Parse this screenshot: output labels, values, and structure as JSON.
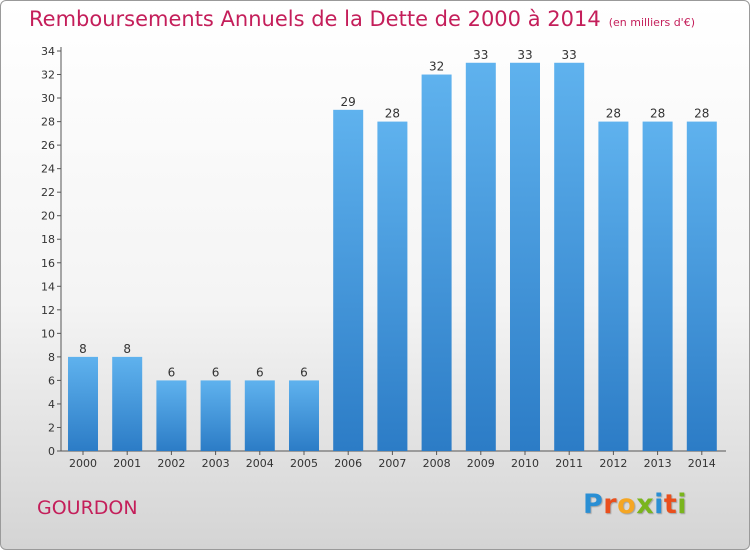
{
  "header": {
    "title": "Remboursements Annuels de la Dette de 2000 à 2014",
    "unit": "(en milliers d'€)"
  },
  "footer": {
    "commune": "GOURDON",
    "logo_letters": [
      {
        "char": "P",
        "color": "#2a8fd4"
      },
      {
        "char": "r",
        "color": "#e94f1d"
      },
      {
        "char": "o",
        "color": "#f5a623"
      },
      {
        "char": "x",
        "color": "#7ab51d"
      },
      {
        "char": "i",
        "color": "#2a8fd4"
      },
      {
        "char": "t",
        "color": "#e94f1d"
      },
      {
        "char": "i",
        "color": "#7ab51d"
      }
    ]
  },
  "chart_data": {
    "type": "bar",
    "title": "Remboursements Annuels de la Dette de 2000 à 2014",
    "unit": "(en milliers d'€)",
    "categories": [
      "2000",
      "2001",
      "2002",
      "2003",
      "2004",
      "2005",
      "2006",
      "2007",
      "2008",
      "2009",
      "2010",
      "2011",
      "2012",
      "2013",
      "2014"
    ],
    "values": [
      8,
      8,
      6,
      6,
      6,
      6,
      29,
      28,
      32,
      33,
      33,
      33,
      28,
      28,
      28
    ],
    "ylim": [
      0,
      34
    ],
    "yticks": [
      0,
      2,
      4,
      6,
      8,
      10,
      12,
      14,
      16,
      18,
      20,
      22,
      24,
      26,
      28,
      30,
      32,
      34
    ],
    "grid": false,
    "bar_color": "#4a9fe0",
    "bar_color_dark": "#2a78c2"
  }
}
